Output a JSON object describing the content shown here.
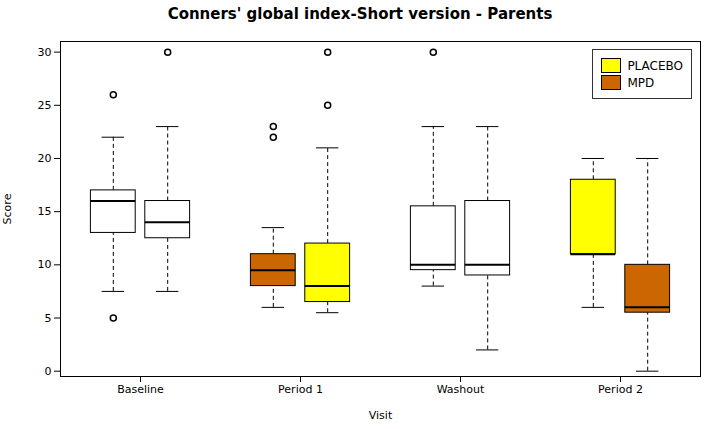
{
  "chart_data": {
    "type": "box",
    "title": "Conners' global index-Short version - Parents",
    "xlabel": "Visit",
    "ylabel": "Score",
    "ylim": [
      -0.5,
      31
    ],
    "yticks": [
      0,
      5,
      10,
      15,
      20,
      25,
      30
    ],
    "grid": false,
    "legend": "upper right",
    "categories": [
      "Baseline",
      "Period 1",
      "Washout",
      "Period 2"
    ],
    "series": [
      {
        "name": "PLACEBO",
        "color": "#FFFF00"
      },
      {
        "name": "MPD",
        "color": "#CC6600"
      }
    ],
    "boxes": [
      [
        {
          "whislo": 7.5,
          "q1": 13.0,
          "med": 16.0,
          "q3": 17.0,
          "whishi": 22.0,
          "fliers": [
            5.0,
            26.0
          ],
          "color": "white"
        },
        {
          "whislo": 7.5,
          "q1": 12.5,
          "med": 14.0,
          "q3": 16.0,
          "whishi": 23.0,
          "fliers": [
            30.0
          ],
          "color": "white"
        }
      ],
      [
        {
          "whislo": 6.0,
          "q1": 8.0,
          "med": 9.5,
          "q3": 11.0,
          "whishi": 13.5,
          "fliers": [
            22.0,
            23.0
          ],
          "color": "#CC6600"
        },
        {
          "whislo": 5.5,
          "q1": 6.5,
          "med": 8.0,
          "q3": 12.0,
          "whishi": 21.0,
          "fliers": [
            25.0,
            30.0
          ],
          "color": "#FFFF00"
        }
      ],
      [
        {
          "whislo": 8.0,
          "q1": 9.5,
          "med": 10.0,
          "q3": 15.5,
          "whishi": 23.0,
          "fliers": [
            30.0
          ],
          "color": "white"
        },
        {
          "whislo": 2.0,
          "q1": 9.0,
          "med": 10.0,
          "q3": 16.0,
          "whishi": 23.0,
          "fliers": [],
          "color": "white"
        }
      ],
      [
        {
          "whislo": 6.0,
          "q1": 11.0,
          "med": 11.0,
          "q3": 18.0,
          "whishi": 20.0,
          "fliers": [],
          "color": "#FFFF00"
        },
        {
          "whislo": 0.0,
          "q1": 5.5,
          "med": 6.0,
          "q3": 10.0,
          "whishi": 20.0,
          "fliers": [],
          "color": "#CC6600"
        }
      ]
    ]
  }
}
